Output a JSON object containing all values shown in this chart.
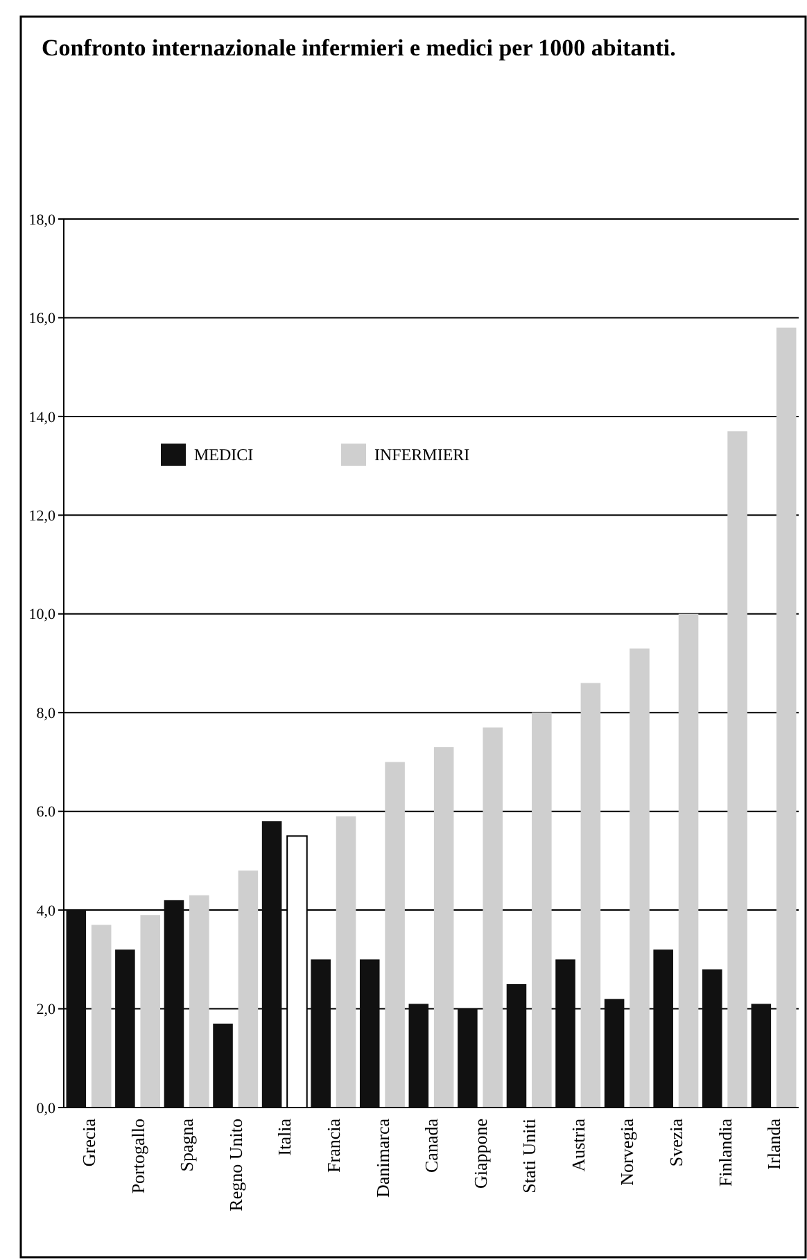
{
  "chart_data": {
    "type": "bar",
    "title": "Confronto internazionale infermieri e medici per 1000 abitanti.",
    "categories": [
      "Grecia",
      "Portogallo",
      "Spagna",
      "Regno Unito",
      "Italia",
      "Francia",
      "Danimarca",
      "Canada",
      "Giappone",
      "Stati Uniti",
      "Austria",
      "Norvegia",
      "Svezia",
      "Finlandia",
      "Irlanda"
    ],
    "series": [
      {
        "name": "MEDICI",
        "color": "#111111",
        "values": [
          4.0,
          3.2,
          4.2,
          1.7,
          5.8,
          3.0,
          3.0,
          2.1,
          2.0,
          2.5,
          3.0,
          2.2,
          3.2,
          2.8,
          2.1
        ]
      },
      {
        "name": "INFERMIERI",
        "color": "#cfcfcf",
        "colors": [
          "#cfcfcf",
          "#cfcfcf",
          "#cfcfcf",
          "#cfcfcf",
          "#ffffff",
          "#cfcfcf",
          "#cfcfcf",
          "#cfcfcf",
          "#cfcfcf",
          "#cfcfcf",
          "#cfcfcf",
          "#cfcfcf",
          "#cfcfcf",
          "#cfcfcf",
          "#cfcfcf"
        ],
        "values": [
          3.7,
          3.9,
          4.3,
          4.8,
          5.5,
          5.9,
          7.0,
          7.3,
          7.7,
          8.0,
          8.6,
          9.3,
          10.0,
          13.7,
          15.8
        ]
      }
    ],
    "ylim": [
      0,
      18
    ],
    "yticks": [
      {
        "value": 0,
        "label": "0,0"
      },
      {
        "value": 2,
        "label": "2,0"
      },
      {
        "value": 4,
        "label": "4,0"
      },
      {
        "value": 6,
        "label": "6.0"
      },
      {
        "value": 8,
        "label": "8,0"
      },
      {
        "value": 10,
        "label": "10,0"
      },
      {
        "value": 12,
        "label": "12,0"
      },
      {
        "value": 14,
        "label": "14,0"
      },
      {
        "value": 16,
        "label": "16,0"
      },
      {
        "value": 18,
        "label": "18,0"
      }
    ],
    "grid": "y",
    "legend": "top left"
  }
}
